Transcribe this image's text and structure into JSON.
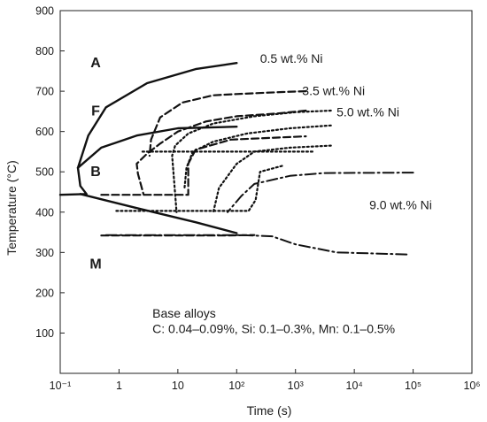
{
  "chart_data": {
    "type": "line",
    "title": "",
    "xlabel": "Time (s)",
    "ylabel": "Temperature (°C)",
    "xscale": "log",
    "xlim": [
      0.1,
      1000000
    ],
    "ylim": [
      0,
      900
    ],
    "x_ticks": [
      0.1,
      1,
      10,
      100,
      1000,
      10000,
      100000,
      1000000
    ],
    "x_tick_labels": [
      "10⁻¹",
      "1",
      "10",
      "10²",
      "10³",
      "10⁴",
      "10⁵",
      "10⁶"
    ],
    "y_ticks": [
      100,
      200,
      300,
      400,
      500,
      600,
      700,
      800,
      900
    ],
    "y_tick_labels": [
      "100",
      "200",
      "300",
      "400",
      "500",
      "600",
      "700",
      "800",
      "900"
    ],
    "grid": false,
    "legend": "none",
    "region_labels": [
      {
        "text": "A",
        "x": 0.4,
        "y": 760
      },
      {
        "text": "F",
        "x": 0.4,
        "y": 640
      },
      {
        "text": "B",
        "x": 0.4,
        "y": 490
      },
      {
        "text": "M",
        "x": 0.4,
        "y": 260
      }
    ],
    "annotations": [
      {
        "text": "0.5 wt.% Ni",
        "x": 250,
        "y": 770
      },
      {
        "text": "3.5 wt.% Ni",
        "x": 1300,
        "y": 690
      },
      {
        "text": "5.0 wt.% Ni",
        "x": 5000,
        "y": 638
      },
      {
        "text": "9.0 wt.% Ni",
        "x": 18000,
        "y": 407
      },
      {
        "text": "Base alloys",
        "x": 3.7,
        "y": 138
      },
      {
        "text": "C: 0.04–0.09%, Si: 0.1–0.3%, Mn: 0.1–0.5%",
        "x": 3.7,
        "y": 100
      }
    ],
    "series": [
      {
        "name": "0.5 wt.% Ni",
        "style": "solid",
        "segments": [
          [
            [
              100,
              770
            ],
            [
              20,
              755
            ],
            [
              3,
              720
            ],
            [
              0.6,
              660
            ],
            [
              0.3,
              590
            ],
            [
              0.2,
              510
            ],
            [
              0.22,
              465
            ],
            [
              0.28,
              445
            ],
            [
              0.1,
              443
            ]
          ],
          [
            [
              0.2,
              510
            ],
            [
              0.5,
              560
            ],
            [
              2,
              590
            ],
            [
              10,
              608
            ],
            [
              100,
              612
            ]
          ],
          [
            [
              0.22,
              445
            ],
            [
              2,
              410
            ],
            [
              20,
              375
            ],
            [
              100,
              348
            ]
          ]
        ]
      },
      {
        "name": "3.5 wt.% Ni",
        "style": "dashed",
        "segments": [
          [
            [
              1500,
              700
            ],
            [
              600,
              698
            ],
            [
              100,
              693
            ],
            [
              40,
              690
            ],
            [
              12,
              672
            ],
            [
              5,
              635
            ],
            [
              3.5,
              580
            ],
            [
              3.3,
              540
            ]
          ],
          [
            [
              1500,
              652
            ],
            [
              500,
              645
            ],
            [
              100,
              638
            ],
            [
              30,
              625
            ],
            [
              10,
              600
            ],
            [
              5,
              570
            ],
            [
              3,
              545
            ],
            [
              2,
              520
            ],
            [
              2.1,
              495
            ],
            [
              2.6,
              445
            ]
          ],
          [
            [
              0.5,
              443
            ],
            [
              15,
              443
            ],
            [
              15,
              520
            ],
            [
              20,
              555
            ],
            [
              80,
              580
            ],
            [
              1500,
              588
            ]
          ],
          [
            [
              0.5,
              342
            ],
            [
              60,
              342
            ],
            [
              200,
              343
            ]
          ]
        ]
      },
      {
        "name": "5.0 wt.% Ni",
        "style": "dotted",
        "segments": [
          [
            [
              4000,
              652
            ],
            [
              1000,
              648
            ],
            [
              200,
              638
            ],
            [
              40,
              620
            ],
            [
              15,
              595
            ],
            [
              9,
              565
            ],
            [
              8,
              540
            ],
            [
              9.5,
              400
            ]
          ],
          [
            [
              4000,
              615
            ],
            [
              800,
              608
            ],
            [
              150,
              595
            ],
            [
              40,
              575
            ],
            [
              18,
              550
            ],
            [
              14,
              510
            ],
            [
              13,
              460
            ]
          ],
          [
            [
              4000,
              565
            ],
            [
              800,
              560
            ],
            [
              200,
              550
            ],
            [
              100,
              520
            ],
            [
              50,
              460
            ],
            [
              40,
              400
            ]
          ],
          [
            [
              0.9,
              403
            ],
            [
              160,
              403
            ],
            [
              210,
              430
            ],
            [
              250,
              500
            ],
            [
              600,
              515
            ]
          ],
          [
            [
              2.5,
              550
            ],
            [
              2000,
              550
            ]
          ]
        ]
      },
      {
        "name": "9.0 wt.% Ni",
        "style": "dashdot",
        "segments": [
          [
            [
              100000,
              498
            ],
            [
              3000,
              497
            ],
            [
              800,
              490
            ],
            [
              200,
              470
            ],
            [
              120,
              440
            ],
            [
              70,
              400
            ]
          ],
          [
            [
              0.6,
              343
            ],
            [
              120,
              343
            ],
            [
              400,
              340
            ],
            [
              1000,
              320
            ],
            [
              5000,
              300
            ],
            [
              80000,
              295
            ]
          ]
        ]
      }
    ]
  }
}
